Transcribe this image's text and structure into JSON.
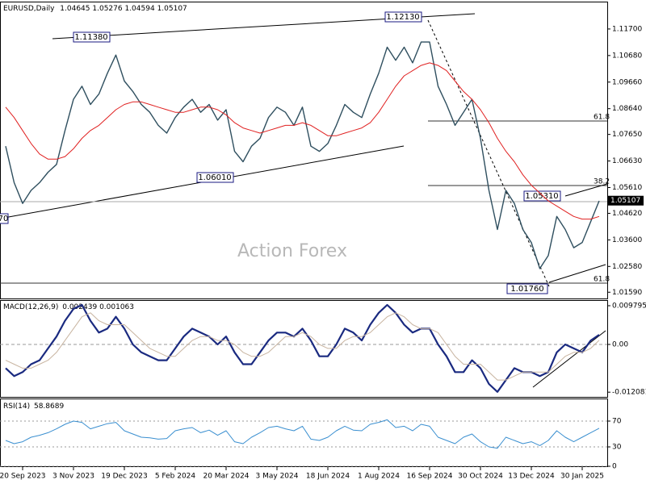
{
  "chart_data": [
    {
      "type": "line",
      "symbol": "EURUSD,Daily",
      "ohlc": [
        1.04645,
        1.05276,
        1.04594,
        1.05107
      ],
      "last_price": 1.05107,
      "watermark": "Action Forex",
      "annotations": [
        "1.11380",
        "1.06010",
        "1.12130",
        "1.05310",
        "1.01760",
        "70",
        "61.8",
        "38.2",
        "61.8"
      ],
      "categories": [
        null,
        null,
        "20 Sep 2023",
        null,
        null,
        null,
        null,
        null,
        "3 Nov 2023",
        null,
        null,
        null,
        null,
        null,
        "19 Dec 2023",
        null,
        null,
        null,
        null,
        null,
        "5 Feb 2024",
        null,
        null,
        null,
        null,
        null,
        "20 Mar 2024",
        null,
        null,
        null,
        null,
        null,
        "3 May 2024",
        null,
        null,
        null,
        null,
        null,
        "18 Jun 2024",
        null,
        null,
        null,
        null,
        null,
        "1 Aug 2024",
        null,
        null,
        null,
        null,
        null,
        "16 Sep 2024",
        null,
        null,
        null,
        null,
        null,
        "30 Oct 2024",
        null,
        null,
        null,
        null,
        null,
        "13 Dec 2024",
        null,
        null,
        null,
        null,
        null,
        "30 Jan 2025",
        null,
        null
      ],
      "series": [
        {
          "color": "#2f4f5f",
          "values": [
            1.072,
            1.058,
            1.05,
            1.055,
            1.058,
            1.062,
            1.065,
            1.078,
            1.09,
            1.095,
            1.088,
            1.092,
            1.1,
            1.107,
            1.097,
            1.093,
            1.088,
            1.085,
            1.08,
            1.077,
            1.083,
            1.087,
            1.09,
            1.085,
            1.088,
            1.082,
            1.086,
            1.07,
            1.066,
            1.072,
            1.075,
            1.083,
            1.087,
            1.085,
            1.08,
            1.087,
            1.072,
            1.07,
            1.073,
            1.08,
            1.088,
            1.085,
            1.083,
            1.092,
            1.1,
            1.11,
            1.105,
            1.11,
            1.104,
            1.112,
            1.112,
            1.095,
            1.088,
            1.08,
            1.085,
            1.09,
            1.075,
            1.055,
            1.04,
            1.055,
            1.05,
            1.04,
            1.035,
            1.025,
            1.03,
            1.045,
            1.04,
            1.033,
            1.035,
            1.043,
            1.051
          ]
        },
        {
          "color": "#e02020",
          "values": [
            1.087,
            1.083,
            1.078,
            1.073,
            1.069,
            1.067,
            1.067,
            1.068,
            1.071,
            1.075,
            1.078,
            1.08,
            1.083,
            1.086,
            1.088,
            1.089,
            1.089,
            1.088,
            1.087,
            1.086,
            1.085,
            1.085,
            1.086,
            1.087,
            1.087,
            1.086,
            1.084,
            1.081,
            1.079,
            1.078,
            1.077,
            1.078,
            1.079,
            1.08,
            1.08,
            1.081,
            1.08,
            1.078,
            1.076,
            1.076,
            1.077,
            1.078,
            1.079,
            1.081,
            1.085,
            1.09,
            1.095,
            1.099,
            1.101,
            1.103,
            1.104,
            1.103,
            1.101,
            1.097,
            1.093,
            1.09,
            1.086,
            1.081,
            1.075,
            1.07,
            1.066,
            1.061,
            1.057,
            1.054,
            1.051,
            1.049,
            1.047,
            1.045,
            1.044,
            1.044,
            1.045
          ]
        }
      ],
      "ylim": [
        1.0135,
        1.1272
      ],
      "yticks": [
        {
          "value": 1.117,
          "label": "1.11700"
        },
        {
          "value": 1.1068,
          "label": "1.10680"
        },
        {
          "value": 1.0966,
          "label": "1.09660"
        },
        {
          "value": 1.0864,
          "label": "1.08640"
        },
        {
          "value": 1.0765,
          "label": "1.07650"
        },
        {
          "value": 1.0663,
          "label": "1.06630"
        },
        {
          "value": 1.0561,
          "label": "1.05610"
        },
        {
          "value": 1.0462,
          "label": "1.04620"
        },
        {
          "value": 1.036,
          "label": "1.03600"
        },
        {
          "value": 1.0258,
          "label": "1.02580"
        },
        {
          "value": 1.0159,
          "label": "1.01590"
        }
      ],
      "grid": false
    },
    {
      "type": "line",
      "title": "MACD(12,26,9)",
      "readings": [
        0.002439,
        0.001063
      ],
      "series": [
        {
          "color": "#1a2a80",
          "values": [
            -0.006,
            -0.008,
            -0.007,
            -0.005,
            -0.004,
            -0.001,
            0.002,
            0.006,
            0.009,
            0.01,
            0.006,
            0.003,
            0.004,
            0.007,
            0.004,
            0,
            -0.002,
            -0.003,
            -0.004,
            -0.004,
            -0.001,
            0.002,
            0.004,
            0.003,
            0.002,
            0,
            0.002,
            -0.002,
            -0.005,
            -0.005,
            -0.002,
            0.001,
            0.003,
            0.003,
            0.002,
            0.004,
            0.001,
            -0.003,
            -0.003,
            0,
            0.004,
            0.003,
            0.001,
            0.005,
            0.008,
            0.01,
            0.008,
            0.005,
            0.003,
            0.004,
            0.004,
            0,
            -0.003,
            -0.007,
            -0.007,
            -0.004,
            -0.006,
            -0.01,
            -0.012,
            -0.009,
            -0.006,
            -0.007,
            -0.007,
            -0.008,
            -0.007,
            -0.002,
            0,
            -0.001,
            -0.002,
            0.001,
            0.002439
          ]
        },
        {
          "color": "#c8b4a0",
          "values": [
            -0.004,
            -0.005,
            -0.006,
            -0.006,
            -0.005,
            -0.004,
            -0.002,
            0.001,
            0.004,
            0.007,
            0.008,
            0.006,
            0.005,
            0.005,
            0.005,
            0.003,
            0.001,
            -0.001,
            -0.002,
            -0.003,
            -0.003,
            -0.001,
            0.001,
            0.002,
            0.002,
            0.001,
            0.001,
            0,
            -0.002,
            -0.003,
            -0.003,
            -0.002,
            0,
            0.002,
            0.002,
            0.003,
            0.002,
            0,
            -0.001,
            -0.001,
            0.001,
            0.002,
            0.002,
            0.003,
            0.005,
            0.007,
            0.008,
            0.007,
            0.005,
            0.004,
            0.004,
            0.003,
            0,
            -0.003,
            -0.005,
            -0.005,
            -0.005,
            -0.007,
            -0.009,
            -0.009,
            -0.008,
            -0.007,
            -0.007,
            -0.007,
            -0.007,
            -0.005,
            -0.003,
            -0.002,
            -0.002,
            -0.001,
            0.001063
          ]
        }
      ],
      "ylim": [
        -0.01327,
        0.01122
      ],
      "yticks": [
        0.009795,
        {
          "value": 0,
          "label": "0.00"
        },
        -0.012081
      ],
      "zero_line": true,
      "grid": false
    },
    {
      "type": "line",
      "title": "RSI(14)",
      "readings": [
        58.8689
      ],
      "series": [
        {
          "color": "#3a8fd0",
          "values": [
            40,
            35,
            38,
            45,
            48,
            52,
            58,
            65,
            70,
            68,
            58,
            62,
            66,
            68,
            55,
            50,
            45,
            44,
            42,
            43,
            55,
            58,
            60,
            52,
            56,
            48,
            55,
            38,
            35,
            45,
            52,
            60,
            62,
            58,
            55,
            62,
            42,
            40,
            45,
            55,
            62,
            56,
            55,
            65,
            68,
            72,
            60,
            62,
            55,
            65,
            62,
            45,
            40,
            35,
            45,
            50,
            38,
            30,
            28,
            45,
            40,
            35,
            38,
            32,
            40,
            55,
            45,
            38,
            45,
            52,
            58.8689
          ]
        }
      ],
      "ylim": [
        0,
        100
      ],
      "yticks": [
        70,
        30,
        0
      ],
      "grid": true
    }
  ]
}
